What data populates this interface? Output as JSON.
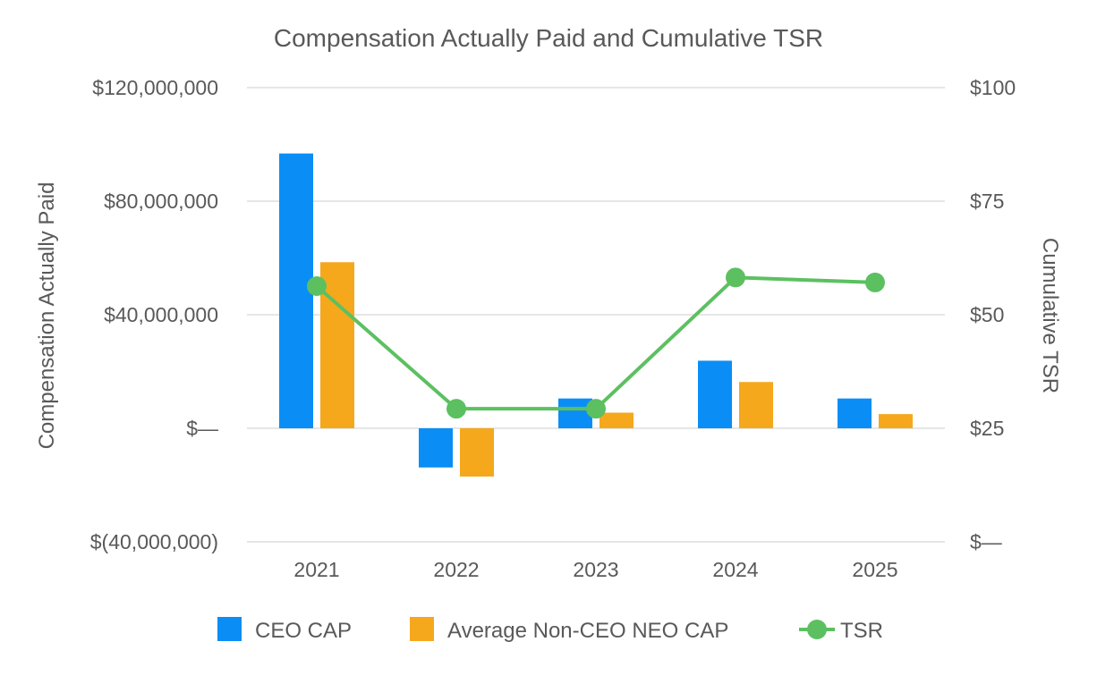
{
  "chart_data": {
    "type": "bar",
    "title": "Compensation Actually Paid and Cumulative TSR",
    "categories": [
      "2021",
      "2022",
      "2023",
      "2024",
      "2025"
    ],
    "ylabel": "Compensation Actually Paid",
    "y2label": "Cumulative TSR",
    "ylim": [
      -40000000,
      120000000
    ],
    "y2lim": [
      0,
      100
    ],
    "yticks": [
      {
        "value": 120000000,
        "label": "$120,000,000"
      },
      {
        "value": 80000000,
        "label": "$80,000,000"
      },
      {
        "value": 40000000,
        "label": "$40,000,000"
      },
      {
        "value": 0,
        "label": "$—"
      },
      {
        "value": -40000000,
        "label": "$(40,000,000)"
      }
    ],
    "y2ticks": [
      {
        "value": 100,
        "label": "$100"
      },
      {
        "value": 75,
        "label": "$75"
      },
      {
        "value": 50,
        "label": "$50"
      },
      {
        "value": 25,
        "label": "$25"
      },
      {
        "value": 0,
        "label": "$—"
      }
    ],
    "grid": true,
    "legend_position": "bottom",
    "series": [
      {
        "name": "CEO CAP",
        "type": "bar",
        "axis": "left",
        "color": "#0a8ef5",
        "values": [
          96800000,
          -13800000,
          10500000,
          23800000,
          10500000
        ]
      },
      {
        "name": "Average Non-CEO NEO CAP",
        "type": "bar",
        "axis": "left",
        "color": "#f5a81c",
        "values": [
          58500000,
          -17000000,
          5500000,
          16300000,
          5000000
        ]
      },
      {
        "name": "TSR",
        "type": "line",
        "axis": "right",
        "color": "#5cc061",
        "values": [
          56.3,
          29.3,
          29.3,
          58.2,
          57.1
        ]
      }
    ]
  }
}
